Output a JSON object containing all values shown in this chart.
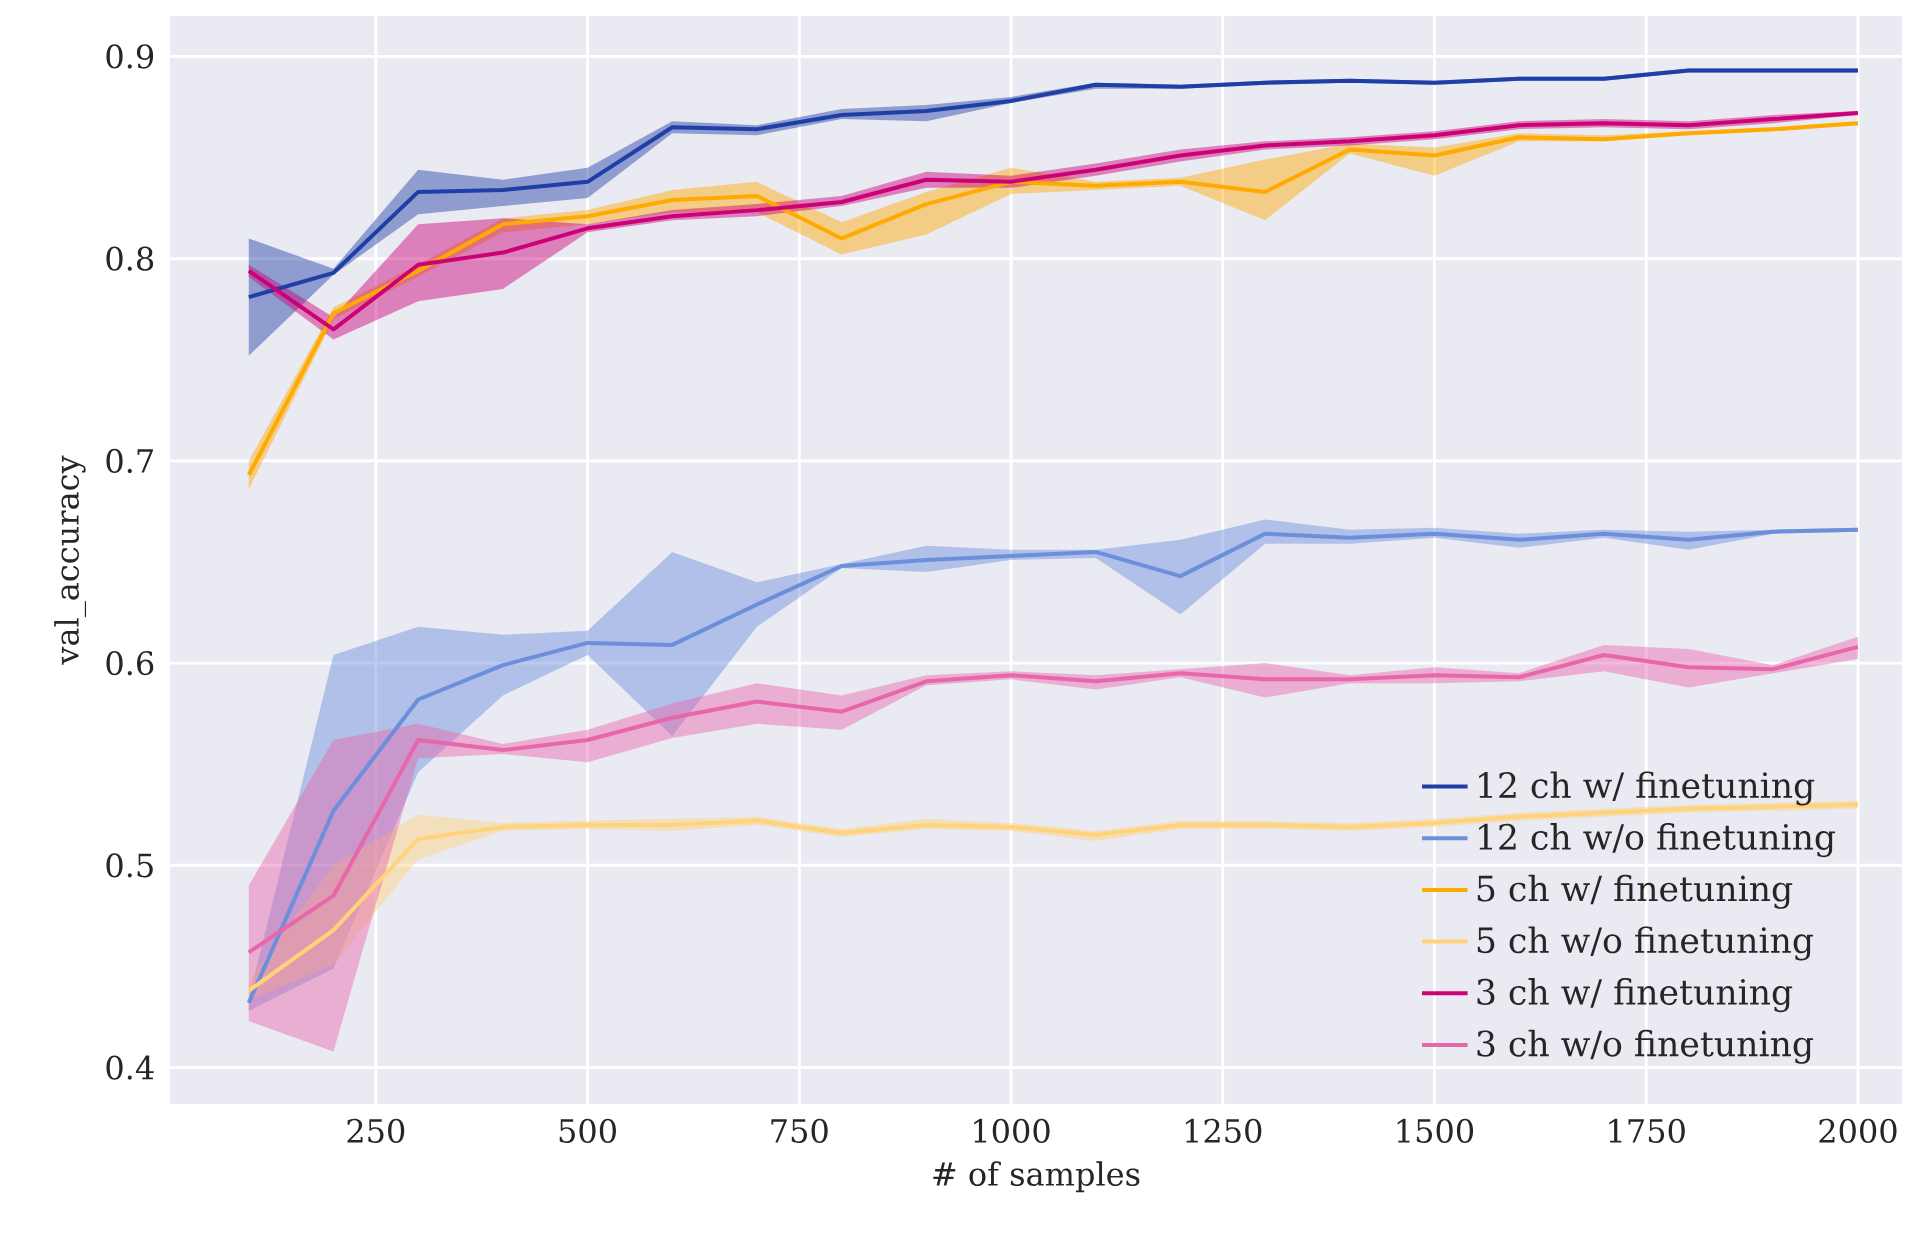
{
  "chart_data": {
    "type": "line",
    "xlabel": "# of samples",
    "ylabel": "val_accuracy",
    "x": [
      100,
      200,
      300,
      400,
      500,
      600,
      700,
      800,
      900,
      1000,
      1100,
      1200,
      1300,
      1400,
      1500,
      1600,
      1700,
      1800,
      1900,
      2000
    ],
    "xlim": [
      7,
      2052
    ],
    "ylim": [
      0.382,
      0.92
    ],
    "xticks": [
      250,
      500,
      750,
      1000,
      1250,
      1500,
      1750,
      2000
    ],
    "yticks": [
      0.4,
      0.5,
      0.6,
      0.7,
      0.8,
      0.9
    ],
    "grid": true,
    "legend": "bottom right",
    "series": [
      {
        "name": "12 ch w/ finetuning",
        "color": "#1f3fa6",
        "values": [
          0.781,
          0.793,
          0.833,
          0.834,
          0.838,
          0.865,
          0.864,
          0.871,
          0.873,
          0.878,
          0.886,
          0.885,
          0.887,
          0.888,
          0.887,
          0.889,
          0.889,
          0.893,
          0.893,
          0.893
        ],
        "lower": [
          0.752,
          0.792,
          0.822,
          0.826,
          0.83,
          0.862,
          0.861,
          0.869,
          0.868,
          0.877,
          0.884,
          0.884,
          0.886,
          0.887,
          0.886,
          0.888,
          0.888,
          0.892,
          0.892,
          0.892
        ],
        "upper": [
          0.81,
          0.795,
          0.844,
          0.839,
          0.845,
          0.868,
          0.866,
          0.874,
          0.876,
          0.88,
          0.887,
          0.886,
          0.888,
          0.889,
          0.888,
          0.89,
          0.89,
          0.894,
          0.894,
          0.894
        ]
      },
      {
        "name": "12 ch w/o finetuning",
        "color": "#6b8fdb",
        "values": [
          0.432,
          0.527,
          0.582,
          0.599,
          0.61,
          0.609,
          0.629,
          0.648,
          0.651,
          0.653,
          0.655,
          0.643,
          0.664,
          0.662,
          0.664,
          0.661,
          0.664,
          0.661,
          0.665,
          0.666
        ],
        "lower": [
          0.428,
          0.449,
          0.546,
          0.584,
          0.604,
          0.564,
          0.618,
          0.647,
          0.645,
          0.651,
          0.652,
          0.624,
          0.659,
          0.659,
          0.662,
          0.657,
          0.662,
          0.656,
          0.664,
          0.665
        ],
        "upper": [
          0.434,
          0.604,
          0.618,
          0.614,
          0.616,
          0.655,
          0.64,
          0.649,
          0.658,
          0.656,
          0.656,
          0.661,
          0.671,
          0.666,
          0.667,
          0.664,
          0.666,
          0.665,
          0.666,
          0.667
        ]
      },
      {
        "name": "5 ch w/ finetuning",
        "color": "#ffaa00",
        "values": [
          0.693,
          0.773,
          0.794,
          0.817,
          0.821,
          0.829,
          0.831,
          0.81,
          0.827,
          0.838,
          0.836,
          0.838,
          0.833,
          0.854,
          0.851,
          0.86,
          0.859,
          0.862,
          0.864,
          0.867
        ],
        "lower": [
          0.686,
          0.77,
          0.791,
          0.813,
          0.817,
          0.823,
          0.823,
          0.802,
          0.812,
          0.832,
          0.834,
          0.836,
          0.819,
          0.852,
          0.841,
          0.858,
          0.858,
          0.861,
          0.863,
          0.866
        ],
        "upper": [
          0.7,
          0.776,
          0.797,
          0.82,
          0.824,
          0.834,
          0.838,
          0.818,
          0.833,
          0.845,
          0.838,
          0.84,
          0.849,
          0.857,
          0.855,
          0.862,
          0.861,
          0.863,
          0.865,
          0.868
        ]
      },
      {
        "name": "5 ch w/o finetuning",
        "color": "#ffd37a",
        "values": [
          0.438,
          0.468,
          0.513,
          0.519,
          0.52,
          0.52,
          0.522,
          0.516,
          0.52,
          0.519,
          0.515,
          0.52,
          0.52,
          0.519,
          0.521,
          0.524,
          0.526,
          0.528,
          0.529,
          0.53
        ],
        "lower": [
          0.433,
          0.451,
          0.503,
          0.517,
          0.518,
          0.517,
          0.52,
          0.514,
          0.518,
          0.517,
          0.512,
          0.518,
          0.518,
          0.517,
          0.519,
          0.522,
          0.524,
          0.526,
          0.527,
          0.528
        ],
        "upper": [
          0.443,
          0.5,
          0.525,
          0.521,
          0.522,
          0.523,
          0.524,
          0.518,
          0.523,
          0.521,
          0.517,
          0.522,
          0.522,
          0.521,
          0.523,
          0.526,
          0.528,
          0.53,
          0.531,
          0.532
        ]
      },
      {
        "name": "3 ch w/ finetuning",
        "color": "#cc0077",
        "values": [
          0.794,
          0.765,
          0.797,
          0.803,
          0.815,
          0.821,
          0.824,
          0.828,
          0.839,
          0.838,
          0.844,
          0.851,
          0.856,
          0.858,
          0.861,
          0.866,
          0.867,
          0.866,
          0.869,
          0.872
        ],
        "lower": [
          0.791,
          0.76,
          0.779,
          0.785,
          0.813,
          0.819,
          0.821,
          0.826,
          0.835,
          0.835,
          0.841,
          0.848,
          0.854,
          0.856,
          0.859,
          0.864,
          0.865,
          0.864,
          0.867,
          0.871
        ],
        "upper": [
          0.797,
          0.771,
          0.817,
          0.82,
          0.817,
          0.824,
          0.827,
          0.831,
          0.843,
          0.841,
          0.847,
          0.854,
          0.858,
          0.86,
          0.863,
          0.868,
          0.869,
          0.868,
          0.871,
          0.873
        ]
      },
      {
        "name": "3 ch w/o finetuning",
        "color": "#e866aa",
        "values": [
          0.457,
          0.485,
          0.562,
          0.557,
          0.562,
          0.573,
          0.581,
          0.576,
          0.591,
          0.594,
          0.591,
          0.595,
          0.592,
          0.592,
          0.594,
          0.593,
          0.604,
          0.598,
          0.597,
          0.608
        ],
        "lower": [
          0.423,
          0.408,
          0.553,
          0.555,
          0.551,
          0.563,
          0.57,
          0.567,
          0.589,
          0.592,
          0.587,
          0.593,
          0.583,
          0.59,
          0.59,
          0.591,
          0.596,
          0.588,
          0.595,
          0.602
        ],
        "upper": [
          0.49,
          0.562,
          0.57,
          0.56,
          0.567,
          0.58,
          0.59,
          0.584,
          0.594,
          0.596,
          0.594,
          0.597,
          0.6,
          0.594,
          0.598,
          0.595,
          0.609,
          0.607,
          0.599,
          0.613
        ]
      }
    ]
  }
}
